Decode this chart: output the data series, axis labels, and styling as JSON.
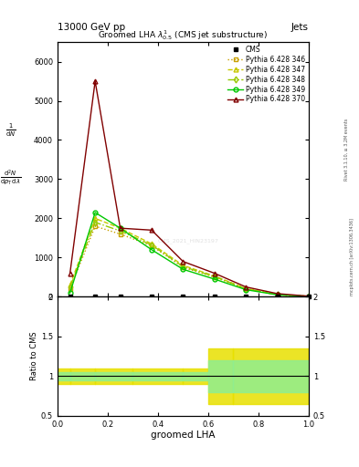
{
  "title_top": "13000 GeV pp",
  "title_right": "Jets",
  "plot_title": "Groomed LHA $\\lambda^{1}_{0.5}$ (CMS jet substructure)",
  "xlabel": "groomed LHA",
  "ylabel_lines": [
    "$\\frac{1}{\\mathrm{d}N}$",
    "$\\frac{\\mathrm{d}^2N}{\\mathrm{d}p_\\mathrm{T}\\,\\mathrm{d}\\lambda}$"
  ],
  "ylabel_ratio": "Ratio to CMS",
  "watermark": "CMS_2021_HIN23197",
  "right_label": "mcplots.cern.ch [arXiv:1306.3436]",
  "right_label2": "Rivet 3.1.10, ≥ 3.2M events",
  "x_vals": [
    0.05,
    0.15,
    0.25,
    0.375,
    0.5,
    0.625,
    0.75,
    0.875,
    1.0
  ],
  "cms_x": [
    0.05,
    0.15,
    0.25,
    0.375,
    0.5,
    0.625,
    0.75,
    0.875,
    1.0
  ],
  "p346_y": [
    200,
    1800,
    1600,
    1300,
    750,
    500,
    200,
    50,
    10
  ],
  "p347_y": [
    300,
    2000,
    1750,
    1350,
    800,
    530,
    210,
    55,
    12
  ],
  "p348_y": [
    250,
    1900,
    1680,
    1320,
    770,
    515,
    205,
    52,
    11
  ],
  "p349_y": [
    100,
    2150,
    1750,
    1200,
    700,
    450,
    180,
    50,
    10
  ],
  "p370_y": [
    600,
    5500,
    1750,
    1700,
    900,
    600,
    250,
    80,
    15
  ],
  "band_edges": [
    0.0,
    0.05,
    0.15,
    0.3,
    0.5,
    0.6,
    0.7,
    1.0
  ],
  "band_yellow_lo": [
    0.9,
    0.9,
    0.9,
    0.9,
    0.9,
    0.65,
    0.65
  ],
  "band_yellow_hi": [
    1.1,
    1.1,
    1.1,
    1.1,
    1.1,
    1.35,
    1.35
  ],
  "band_green_lo": [
    0.95,
    0.95,
    0.95,
    0.95,
    0.95,
    0.8,
    0.8
  ],
  "band_green_hi": [
    1.05,
    1.05,
    1.05,
    1.05,
    1.05,
    1.2,
    1.2
  ],
  "color_346": "#c8a000",
  "color_347": "#c8c800",
  "color_348": "#98c800",
  "color_349": "#00c800",
  "color_370": "#800000",
  "yticks": [
    0,
    1000,
    2000,
    3000,
    4000,
    5000,
    6000
  ],
  "ylim_main": [
    0,
    6500
  ],
  "ylim_ratio": [
    0.5,
    2.0
  ],
  "ratio_yticks": [
    0.5,
    1.0,
    1.5,
    2.0
  ],
  "xlim": [
    0.0,
    1.0
  ]
}
